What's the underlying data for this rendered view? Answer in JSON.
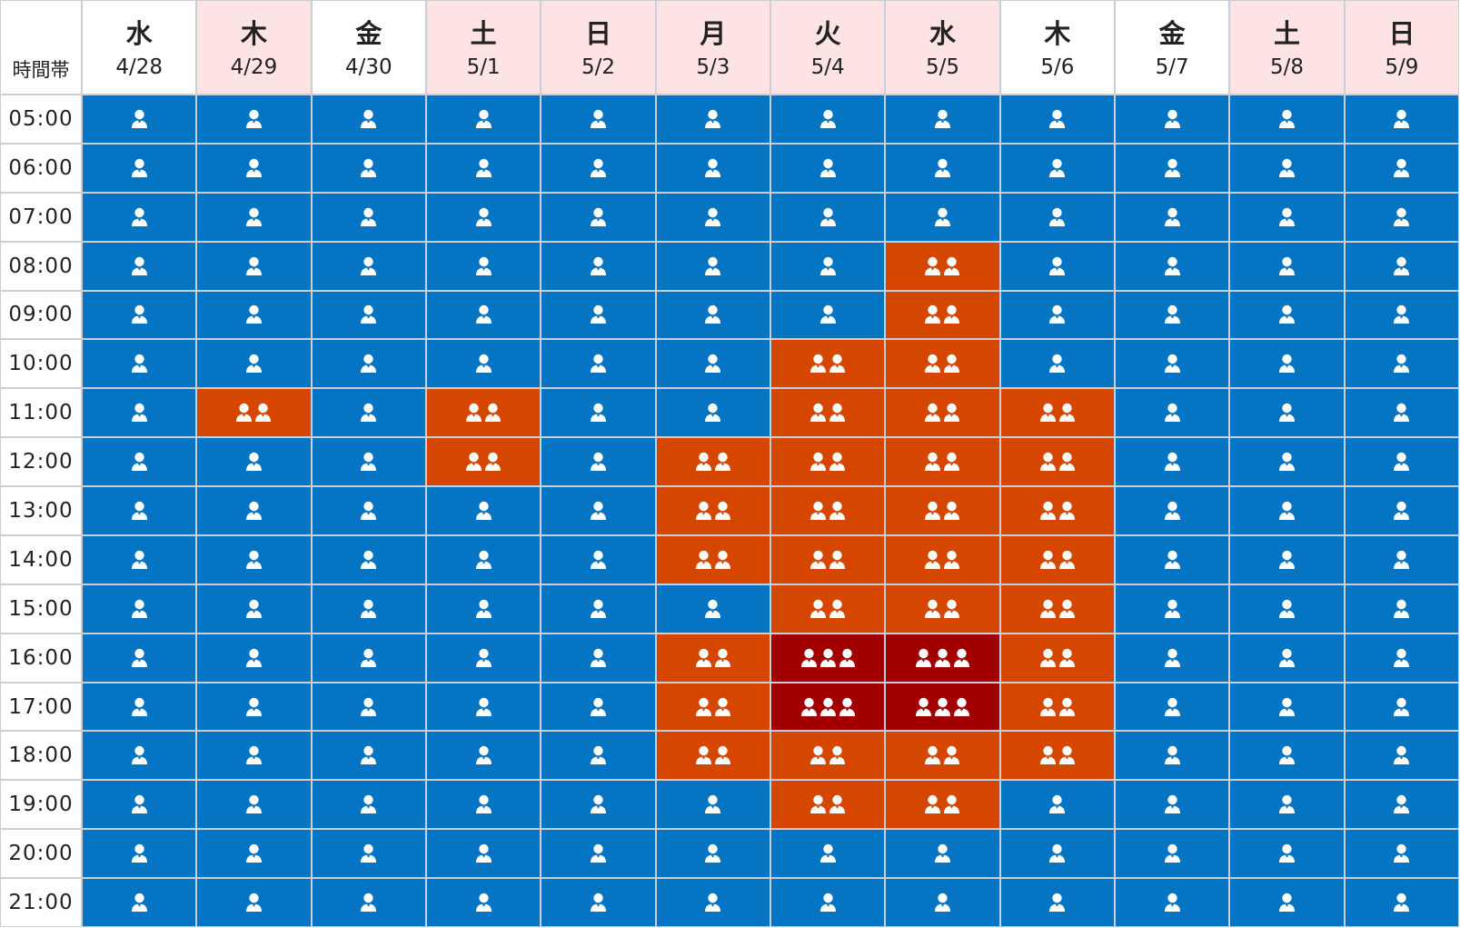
{
  "header": {
    "corner_label": "時間帯"
  },
  "colors": {
    "level_1": "#0474c3",
    "level_2": "#d54700",
    "level_3": "#a20000",
    "holiday_header": "#fde3e4",
    "weekday_header": "#ffffff"
  },
  "legend_icon": "person-icon",
  "chart_data": {
    "type": "heatmap",
    "value_meaning": "number of person icons per cell",
    "days": [
      {
        "dow": "水",
        "date": "4/28",
        "holiday": false
      },
      {
        "dow": "木",
        "date": "4/29",
        "holiday": true
      },
      {
        "dow": "金",
        "date": "4/30",
        "holiday": false
      },
      {
        "dow": "土",
        "date": "5/1",
        "holiday": true
      },
      {
        "dow": "日",
        "date": "5/2",
        "holiday": true
      },
      {
        "dow": "月",
        "date": "5/3",
        "holiday": true
      },
      {
        "dow": "火",
        "date": "5/4",
        "holiday": true
      },
      {
        "dow": "水",
        "date": "5/5",
        "holiday": true
      },
      {
        "dow": "木",
        "date": "5/6",
        "holiday": false
      },
      {
        "dow": "金",
        "date": "5/7",
        "holiday": false
      },
      {
        "dow": "土",
        "date": "5/8",
        "holiday": true
      },
      {
        "dow": "日",
        "date": "5/9",
        "holiday": true
      }
    ],
    "times": [
      "05:00",
      "06:00",
      "07:00",
      "08:00",
      "09:00",
      "10:00",
      "11:00",
      "12:00",
      "13:00",
      "14:00",
      "15:00",
      "16:00",
      "17:00",
      "18:00",
      "19:00",
      "20:00",
      "21:00"
    ],
    "values": [
      [
        1,
        1,
        1,
        1,
        1,
        1,
        1,
        1,
        1,
        1,
        1,
        1
      ],
      [
        1,
        1,
        1,
        1,
        1,
        1,
        1,
        1,
        1,
        1,
        1,
        1
      ],
      [
        1,
        1,
        1,
        1,
        1,
        1,
        1,
        1,
        1,
        1,
        1,
        1
      ],
      [
        1,
        1,
        1,
        1,
        1,
        1,
        1,
        2,
        1,
        1,
        1,
        1
      ],
      [
        1,
        1,
        1,
        1,
        1,
        1,
        1,
        2,
        1,
        1,
        1,
        1
      ],
      [
        1,
        1,
        1,
        1,
        1,
        1,
        2,
        2,
        1,
        1,
        1,
        1
      ],
      [
        1,
        2,
        1,
        2,
        1,
        1,
        2,
        2,
        2,
        1,
        1,
        1
      ],
      [
        1,
        1,
        1,
        2,
        1,
        2,
        2,
        2,
        2,
        1,
        1,
        1
      ],
      [
        1,
        1,
        1,
        1,
        1,
        2,
        2,
        2,
        2,
        1,
        1,
        1
      ],
      [
        1,
        1,
        1,
        1,
        1,
        2,
        2,
        2,
        2,
        1,
        1,
        1
      ],
      [
        1,
        1,
        1,
        1,
        1,
        1,
        2,
        2,
        2,
        1,
        1,
        1
      ],
      [
        1,
        1,
        1,
        1,
        1,
        2,
        3,
        3,
        2,
        1,
        1,
        1
      ],
      [
        1,
        1,
        1,
        1,
        1,
        2,
        3,
        3,
        2,
        1,
        1,
        1
      ],
      [
        1,
        1,
        1,
        1,
        1,
        2,
        2,
        2,
        2,
        1,
        1,
        1
      ],
      [
        1,
        1,
        1,
        1,
        1,
        1,
        2,
        2,
        1,
        1,
        1,
        1
      ],
      [
        1,
        1,
        1,
        1,
        1,
        1,
        1,
        1,
        1,
        1,
        1,
        1
      ],
      [
        1,
        1,
        1,
        1,
        1,
        1,
        1,
        1,
        1,
        1,
        1,
        1
      ]
    ]
  }
}
